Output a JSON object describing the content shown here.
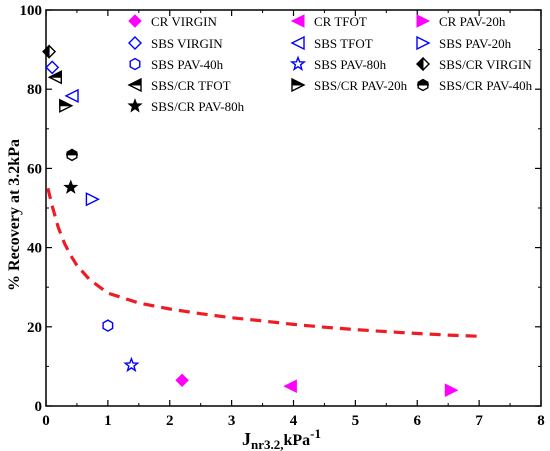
{
  "chart_data": {
    "type": "scatter",
    "title": "",
    "xlabel_main": "J",
    "xlabel_sub": "nr3.2,",
    "xlabel_unit": "kPa",
    "xlabel_sup": "-1",
    "ylabel": "% Recovery at 3.2kPa",
    "xlim": [
      0,
      8
    ],
    "ylim": [
      0,
      100
    ],
    "xticks": [
      "0",
      "1",
      "2",
      "3",
      "4",
      "5",
      "6",
      "7",
      "8"
    ],
    "yticks": [
      "0",
      "20",
      "40",
      "60",
      "80",
      "100"
    ],
    "legend_position": "top-right",
    "series": [
      {
        "name": "CR VIRGIN",
        "marker": "diamond-filled",
        "color": "#ff00ff",
        "points": [
          [
            2.2,
            6.5
          ]
        ]
      },
      {
        "name": "CR TFOT",
        "marker": "tri-left-filled",
        "color": "#ff00ff",
        "points": [
          [
            3.95,
            5.0
          ]
        ]
      },
      {
        "name": "CR PAV-20h",
        "marker": "tri-right-filled",
        "color": "#ff00ff",
        "points": [
          [
            6.55,
            4.0
          ]
        ]
      },
      {
        "name": "SBS VIRGIN",
        "marker": "diamond-open",
        "color": "#0000ff",
        "points": [
          [
            0.1,
            85.5
          ]
        ]
      },
      {
        "name": "SBS TFOT",
        "marker": "tri-left-open",
        "color": "#0000ff",
        "points": [
          [
            0.42,
            78.3
          ]
        ]
      },
      {
        "name": "SBS PAV-20h",
        "marker": "tri-right-open",
        "color": "#0000ff",
        "points": [
          [
            0.75,
            52.2
          ]
        ]
      },
      {
        "name": "SBS PAV-40h",
        "marker": "hex-open",
        "color": "#0000ff",
        "points": [
          [
            1.0,
            20.3
          ]
        ]
      },
      {
        "name": "SBS PAV-80h",
        "marker": "star-open",
        "color": "#0000ff",
        "points": [
          [
            1.38,
            10.3
          ]
        ]
      },
      {
        "name": "SBS/CR VIRGIN",
        "marker": "diamond-half",
        "color": "#000000",
        "points": [
          [
            0.05,
            89.5
          ]
        ]
      },
      {
        "name": "SBS/CR TFOT",
        "marker": "tri-left-half",
        "color": "#000000",
        "points": [
          [
            0.15,
            83.0
          ]
        ]
      },
      {
        "name": "SBS/CR PAV-20h",
        "marker": "tri-right-half",
        "color": "#000000",
        "points": [
          [
            0.32,
            75.8
          ]
        ]
      },
      {
        "name": "SBS/CR PAV-40h",
        "marker": "hex-half",
        "color": "#000000",
        "points": [
          [
            0.42,
            63.4
          ]
        ]
      },
      {
        "name": "SBS/CR PAV-80h",
        "marker": "star-filled",
        "color": "#000000",
        "points": [
          [
            0.4,
            55.2
          ]
        ]
      }
    ],
    "trend_curve": {
      "style": "dashed",
      "color": "#ee1c25",
      "points": [
        [
          0.03,
          55
        ],
        [
          0.1,
          50.5
        ],
        [
          0.2,
          45
        ],
        [
          0.3,
          41
        ],
        [
          0.4,
          38
        ],
        [
          0.5,
          35.5
        ],
        [
          0.7,
          32
        ],
        [
          1.0,
          28.5
        ],
        [
          1.5,
          26
        ],
        [
          2.0,
          24.5
        ],
        [
          2.5,
          23.3
        ],
        [
          3.0,
          22.3
        ],
        [
          3.5,
          21.5
        ],
        [
          4.0,
          20.6
        ],
        [
          4.5,
          19.9
        ],
        [
          5.0,
          19.3
        ],
        [
          5.5,
          18.8
        ],
        [
          6.0,
          18.3
        ],
        [
          6.5,
          17.9
        ],
        [
          7.0,
          17.6
        ]
      ]
    }
  }
}
